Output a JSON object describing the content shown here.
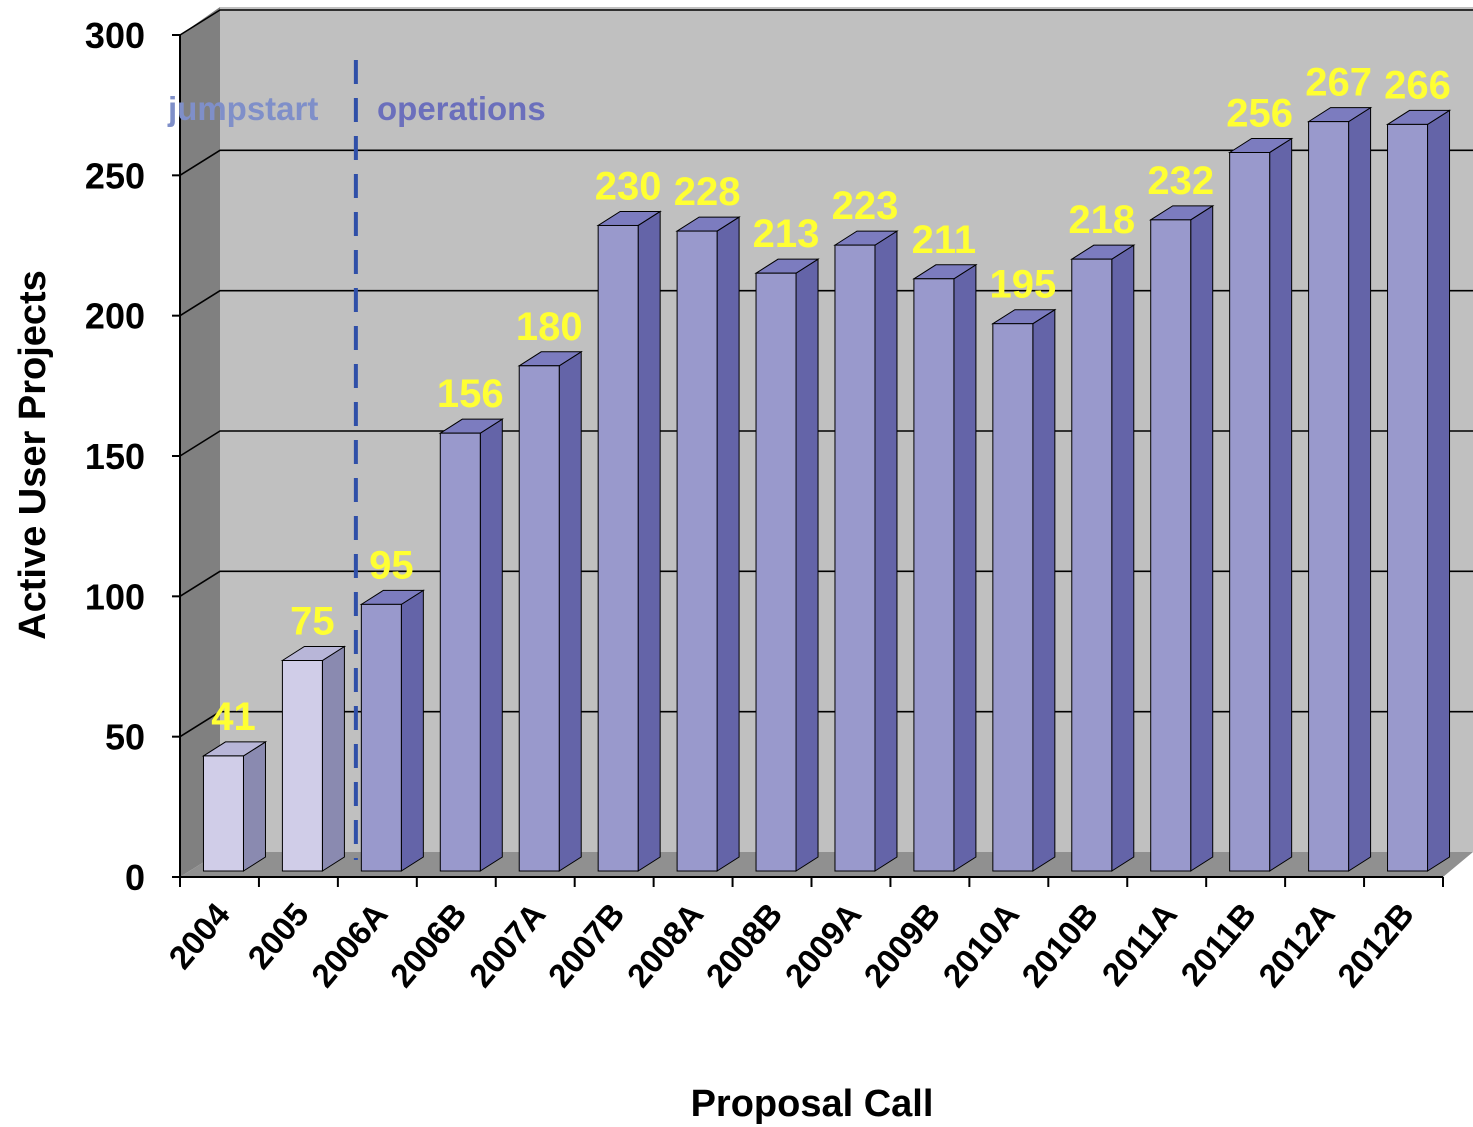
{
  "chart_data": {
    "type": "bar",
    "title": "",
    "xlabel": "Proposal Call",
    "ylabel": "Active User Projects",
    "ylim": [
      0,
      300
    ],
    "yticks": [
      0,
      50,
      100,
      150,
      200,
      250,
      300
    ],
    "grid": true,
    "categories": [
      "2004",
      "2005",
      "2006A",
      "2006B",
      "2007A",
      "2007B",
      "2008A",
      "2008B",
      "2009A",
      "2009B",
      "2010A",
      "2010B",
      "2011A",
      "2011B",
      "2012A",
      "2012B"
    ],
    "values": [
      41,
      75,
      95,
      156,
      180,
      230,
      228,
      213,
      223,
      211,
      195,
      218,
      232,
      256,
      267,
      266
    ],
    "data_labels": [
      "41",
      "75",
      "95",
      "156",
      "180",
      "230",
      "228",
      "213",
      "223",
      "211",
      "195",
      "218",
      "232",
      "256",
      "267",
      "266"
    ],
    "regions": [
      {
        "label": "jumpstart",
        "categories": [
          "2004",
          "2005"
        ],
        "color": "#d0cde8"
      },
      {
        "label": "operations",
        "categories": [
          "2006A",
          "2006B",
          "2007A",
          "2007B",
          "2008A",
          "2008B",
          "2009A",
          "2009B",
          "2010A",
          "2010B",
          "2011A",
          "2011B",
          "2012A",
          "2012B"
        ],
        "color": "#9999cc"
      }
    ],
    "colors": {
      "jumpstart_bar": "#d0cde8",
      "operations_bar": "#9999cc",
      "data_label": "#ffff33",
      "jumpstart_text": "#7f8fc9",
      "operations_text": "#6b6fbc",
      "divider": "#2f4fa8",
      "back_wall": "#c0c0c0",
      "side_wall": "#808080",
      "floor": "#909090"
    }
  }
}
